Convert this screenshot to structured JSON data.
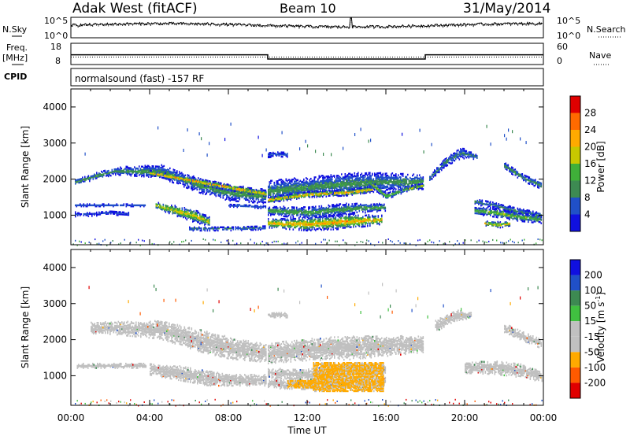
{
  "header": {
    "radar": "Adak West (fitACF)",
    "beam": "Beam 10",
    "date": "31/May/2014"
  },
  "status_panels": {
    "nsky_label": "N.Sky",
    "nsky_ticks": [
      "10^5",
      "10^0"
    ],
    "nsearch_label": "N.Search",
    "freq_label": "Freq.",
    "freq_unit": "[MHz]",
    "freq_ticks": [
      "18",
      "8"
    ],
    "nave_ticks": [
      "60",
      "0"
    ],
    "nave_label": "Nave",
    "cpid_label": "CPID",
    "cpid_text": "normalsound (fast) -157 RF"
  },
  "colors": {
    "power": [
      "#1010e0",
      "#2050c8",
      "#3d8a52",
      "#3fb039",
      "#c8c800",
      "#ffaa00",
      "#ff6a00",
      "#e00000"
    ],
    "velocity": [
      "#e00000",
      "#ff5a00",
      "#ffaa00",
      "#c0c0c0",
      "#c0c0c0",
      "#40c040",
      "#3d8a52",
      "#2050c8",
      "#1010e0"
    ],
    "ground_scatter": "#c0c0c0"
  },
  "chart_data": [
    {
      "type": "heatmap",
      "name": "power",
      "xlabel": "Time UT",
      "ylabel": "Slant Range [km]",
      "xlim": [
        0,
        24
      ],
      "ylim": [
        180,
        4500
      ],
      "x_ticks": [
        "00:00",
        "04:00",
        "08:00",
        "12:00",
        "16:00",
        "20:00",
        "00:00"
      ],
      "y_ticks": [
        "1000",
        "2000",
        "3000",
        "4000"
      ],
      "colorbar_label": "Power [dB]",
      "colorbar_ticks": [
        "4",
        "8",
        "12",
        "16",
        "20",
        "24",
        "28"
      ],
      "colorbar_range": [
        0,
        32
      ],
      "bands": [
        {
          "t": [
            0.2,
            2.2,
            4.5,
            6.5,
            8.0,
            9.9
          ],
          "r": [
            1950,
            2250,
            2250,
            1850,
            1650,
            1550
          ],
          "w": [
            80,
            100,
            180,
            200,
            220,
            200
          ],
          "pmax": 14
        },
        {
          "t": [
            4.0,
            5.5,
            7.0,
            8.5,
            9.9
          ],
          "r": [
            2200,
            2050,
            1900,
            1750,
            1620
          ],
          "w": [
            60,
            90,
            80,
            80,
            70
          ],
          "pmax": 28
        },
        {
          "t": [
            10.0,
            12.0,
            14.0,
            16.0,
            17.9
          ],
          "r": [
            1700,
            1800,
            1900,
            1950,
            1950
          ],
          "w": [
            300,
            280,
            300,
            250,
            200
          ],
          "pmax": 14
        },
        {
          "t": [
            10.0,
            12.0,
            14.0,
            15.3
          ],
          "r": [
            1450,
            1600,
            1650,
            1750
          ],
          "w": [
            80,
            80,
            80,
            80
          ],
          "pmax": 28
        },
        {
          "t": [
            15.0,
            16.0,
            17.0,
            17.9
          ],
          "r": [
            2000,
            1550,
            1750,
            1850
          ],
          "w": [
            80,
            80,
            70,
            60
          ],
          "pmax": 20
        },
        {
          "t": [
            10.0,
            12.0,
            14.0,
            16.0
          ],
          "r": [
            1150,
            1100,
            1200,
            1250
          ],
          "w": [
            120,
            160,
            150,
            100
          ],
          "pmax": 16
        },
        {
          "t": [
            10.0,
            12.0,
            14.0,
            15.8
          ],
          "r": [
            800,
            780,
            850,
            900
          ],
          "w": [
            120,
            180,
            200,
            120
          ],
          "pmax": 28
        },
        {
          "t": [
            0.2,
            1.5,
            3.0,
            3.8
          ],
          "r": [
            1300,
            1300,
            1300,
            1300
          ],
          "w": [
            30,
            30,
            30,
            30
          ],
          "pmax": 6
        },
        {
          "t": [
            0.2,
            1.0,
            2.0,
            3.0
          ],
          "r": [
            1050,
            1050,
            1100,
            1050
          ],
          "w": [
            60,
            50,
            60,
            50
          ],
          "pmax": 6
        },
        {
          "t": [
            4.3,
            5.3,
            6.3,
            7.0
          ],
          "r": [
            1300,
            1150,
            1000,
            850
          ],
          "w": [
            90,
            140,
            180,
            120
          ],
          "pmax": 24
        },
        {
          "t": [
            8.0,
            9.0,
            9.9
          ],
          "r": [
            1300,
            1280,
            1250
          ],
          "w": [
            40,
            40,
            40
          ],
          "pmax": 10
        },
        {
          "t": [
            6.0,
            8.0,
            9.9
          ],
          "r": [
            650,
            650,
            680
          ],
          "w": [
            50,
            50,
            50
          ],
          "pmax": 12
        },
        {
          "t": [
            18.2,
            19.0,
            19.8,
            20.6
          ],
          "r": [
            2050,
            2500,
            2750,
            2650
          ],
          "w": [
            80,
            120,
            150,
            70
          ],
          "pmax": 12
        },
        {
          "t": [
            20.5,
            21.5,
            22.5,
            23.9
          ],
          "r": [
            1400,
            1300,
            1150,
            1000
          ],
          "w": [
            80,
            80,
            100,
            100
          ],
          "pmax": 12
        },
        {
          "t": [
            20.5,
            21.5,
            22.5,
            23.9
          ],
          "r": [
            1150,
            1100,
            1000,
            900
          ],
          "w": [
            100,
            120,
            120,
            100
          ],
          "pmax": 18
        },
        {
          "t": [
            21.0,
            21.8,
            22.3
          ],
          "r": [
            800,
            760,
            800
          ],
          "w": [
            60,
            80,
            60
          ],
          "pmax": 26
        },
        {
          "t": [
            22.0,
            23.0,
            23.9
          ],
          "r": [
            2400,
            2050,
            1850
          ],
          "w": [
            100,
            100,
            100
          ],
          "pmax": 14
        },
        {
          "t": [
            10.0,
            10.5,
            11.0
          ],
          "r": [
            2700,
            2720,
            2700
          ],
          "w": [
            70,
            70,
            60
          ],
          "pmax": 8
        }
      ]
    },
    {
      "type": "heatmap",
      "name": "velocity",
      "xlabel": "Time UT",
      "ylabel": "Slant Range [km]",
      "xlim": [
        0,
        24
      ],
      "ylim": [
        180,
        4500
      ],
      "x_ticks": [
        "00:00",
        "04:00",
        "08:00",
        "12:00",
        "16:00",
        "20:00",
        "00:00"
      ],
      "y_ticks": [
        "1000",
        "2000",
        "3000",
        "4000"
      ],
      "colorbar_label": "Velocity [m s^-1]",
      "colorbar_ticks": [
        "200",
        "100",
        "50",
        "15",
        "-15",
        "-50",
        "-100",
        "-200"
      ],
      "ground_scatter_bands": [
        {
          "t": [
            1.0,
            2.2,
            4.5,
            6.5,
            8.0,
            9.9
          ],
          "r": [
            2350,
            2350,
            2300,
            2000,
            1800,
            1650
          ],
          "w": [
            150,
            180,
            250,
            300,
            300,
            250
          ]
        },
        {
          "t": [
            10.0,
            12.0,
            14.0,
            16.0,
            17.9
          ],
          "r": [
            1650,
            1750,
            1800,
            1850,
            1900
          ],
          "w": [
            280,
            300,
            330,
            280,
            220
          ]
        },
        {
          "t": [
            0.3,
            1.5,
            3.0,
            3.8
          ],
          "r": [
            1300,
            1300,
            1300,
            1300
          ],
          "w": [
            60,
            60,
            60,
            60
          ]
        },
        {
          "t": [
            4.0,
            5.5,
            7.0,
            8.5,
            9.9
          ],
          "r": [
            1200,
            1100,
            950,
            900,
            900
          ],
          "w": [
            150,
            200,
            200,
            150,
            150
          ]
        },
        {
          "t": [
            10.0,
            12.0,
            14.0,
            16.0
          ],
          "r": [
            1100,
            1050,
            1200,
            1200
          ],
          "w": [
            130,
            150,
            150,
            120
          ]
        },
        {
          "t": [
            10.0,
            12.0,
            14.0,
            16.0
          ],
          "r": [
            800,
            800,
            850,
            850
          ],
          "w": [
            120,
            150,
            180,
            150
          ]
        },
        {
          "t": [
            18.5,
            19.5,
            20.3
          ],
          "r": [
            2400,
            2700,
            2700
          ],
          "w": [
            150,
            150,
            80
          ]
        },
        {
          "t": [
            20.0,
            21.5,
            23.0,
            23.9
          ],
          "r": [
            1250,
            1250,
            1150,
            1000
          ],
          "w": [
            150,
            180,
            180,
            150
          ]
        },
        {
          "t": [
            22.0,
            23.0,
            23.9
          ],
          "r": [
            2350,
            2100,
            1900
          ],
          "w": [
            120,
            120,
            120
          ]
        },
        {
          "t": [
            10.0,
            10.5,
            11.0
          ],
          "r": [
            2700,
            2720,
            2700
          ],
          "w": [
            70,
            70,
            60
          ]
        }
      ],
      "velocity_blocks": [
        {
          "t": [
            12.3,
            15.9
          ],
          "r": [
            600,
            1400
          ],
          "v": -40
        },
        {
          "t": [
            11.0,
            12.3
          ],
          "r": [
            700,
            900
          ],
          "v": -30
        }
      ]
    }
  ]
}
